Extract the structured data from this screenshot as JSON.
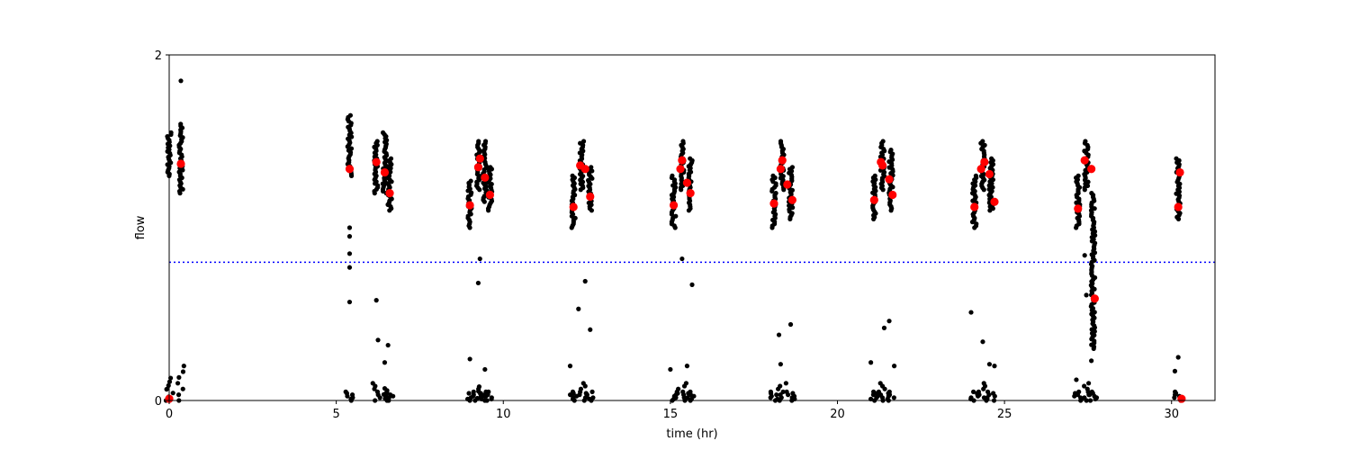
{
  "chart_data": {
    "type": "scatter",
    "title": "",
    "xlabel": "time (hr)",
    "ylabel": "flow",
    "xlim": [
      0,
      31.3
    ],
    "ylim": [
      0,
      2
    ],
    "xticks": [
      0,
      5,
      10,
      15,
      20,
      25,
      30
    ],
    "yticks": [
      0,
      2
    ],
    "grid": false,
    "threshold": {
      "y": 0.8,
      "color": "#0000ff",
      "style": "dotted"
    },
    "series": [
      {
        "color": "#000000",
        "marker": "small-dot",
        "clusters": [
          {
            "x": 0.0,
            "high": [
              1.3,
              1.55
            ],
            "low": [
              0.0,
              0.13
            ]
          },
          {
            "x": 0.35,
            "high": [
              1.2,
              1.6
            ],
            "low": [
              0.0,
              0.2
            ]
          },
          {
            "x": 5.4,
            "high": [
              1.3,
              1.65
            ],
            "low": [
              0.0,
              0.05
            ]
          },
          {
            "x": 6.2,
            "high": [
              1.2,
              1.5
            ],
            "low": [
              0.0,
              0.1
            ]
          },
          {
            "x": 6.45,
            "high": [
              1.2,
              1.55
            ],
            "low": [
              0.0,
              0.07
            ]
          },
          {
            "x": 6.6,
            "high": [
              1.1,
              1.4
            ],
            "low": [
              0.0,
              0.05
            ]
          },
          {
            "x": 9.0,
            "high": [
              1.0,
              1.27
            ],
            "low": [
              0.0,
              0.05
            ]
          },
          {
            "x": 9.25,
            "high": [
              1.22,
              1.5
            ],
            "low": [
              0.0,
              0.08
            ]
          },
          {
            "x": 9.45,
            "high": [
              1.15,
              1.5
            ],
            "low": [
              0.0,
              0.05
            ]
          },
          {
            "x": 9.6,
            "high": [
              1.1,
              1.35
            ],
            "low": [
              0.0,
              0.05
            ]
          },
          {
            "x": 12.1,
            "high": [
              1.0,
              1.3
            ],
            "low": [
              0.0,
              0.05
            ]
          },
          {
            "x": 12.35,
            "high": [
              1.22,
              1.5
            ],
            "low": [
              0.0,
              0.1
            ]
          },
          {
            "x": 12.6,
            "high": [
              1.1,
              1.35
            ],
            "low": [
              0.0,
              0.05
            ]
          },
          {
            "x": 15.1,
            "high": [
              1.0,
              1.3
            ],
            "low": [
              0.0,
              0.05
            ]
          },
          {
            "x": 15.35,
            "high": [
              1.22,
              1.5
            ],
            "low": [
              0.0,
              0.1
            ]
          },
          {
            "x": 15.6,
            "high": [
              1.1,
              1.4
            ],
            "low": [
              0.0,
              0.05
            ]
          },
          {
            "x": 18.1,
            "high": [
              1.0,
              1.3
            ],
            "low": [
              0.0,
              0.05
            ]
          },
          {
            "x": 18.35,
            "high": [
              1.22,
              1.5
            ],
            "low": [
              0.0,
              0.1
            ]
          },
          {
            "x": 18.6,
            "high": [
              1.05,
              1.35
            ],
            "low": [
              0.0,
              0.05
            ]
          },
          {
            "x": 21.1,
            "high": [
              1.05,
              1.3
            ],
            "low": [
              0.0,
              0.05
            ]
          },
          {
            "x": 21.35,
            "high": [
              1.22,
              1.5
            ],
            "low": [
              0.0,
              0.1
            ]
          },
          {
            "x": 21.6,
            "high": [
              1.1,
              1.45
            ],
            "low": [
              0.0,
              0.05
            ]
          },
          {
            "x": 24.1,
            "high": [
              1.0,
              1.3
            ],
            "low": [
              0.0,
              0.05
            ]
          },
          {
            "x": 24.35,
            "high": [
              1.22,
              1.5
            ],
            "low": [
              0.0,
              0.1
            ]
          },
          {
            "x": 24.6,
            "high": [
              1.1,
              1.4
            ],
            "low": [
              0.0,
              0.05
            ]
          },
          {
            "x": 27.2,
            "high": [
              1.0,
              1.3
            ],
            "low": [
              0.0,
              0.05
            ]
          },
          {
            "x": 27.45,
            "high": [
              1.22,
              1.5
            ],
            "low": [
              0.0,
              0.1
            ]
          },
          {
            "x": 27.65,
            "high": [
              0.3,
              1.2
            ],
            "low": [
              0.0,
              0.05
            ]
          },
          {
            "x": 30.2,
            "high": [
              1.05,
              1.4
            ],
            "low": [
              0.0,
              0.05
            ]
          }
        ],
        "sparse": [
          [
            0.35,
            1.85
          ],
          [
            5.4,
            1.0
          ],
          [
            5.4,
            0.95
          ],
          [
            5.4,
            0.85
          ],
          [
            5.4,
            0.77
          ],
          [
            5.4,
            0.57
          ],
          [
            6.2,
            0.58
          ],
          [
            6.25,
            0.35
          ],
          [
            6.45,
            0.22
          ],
          [
            6.55,
            0.32
          ],
          [
            9.0,
            0.24
          ],
          [
            9.25,
            0.68
          ],
          [
            9.3,
            0.82
          ],
          [
            9.45,
            0.18
          ],
          [
            12.0,
            0.2
          ],
          [
            12.25,
            0.53
          ],
          [
            12.45,
            0.69
          ],
          [
            12.6,
            0.41
          ],
          [
            15.0,
            0.18
          ],
          [
            15.35,
            0.82
          ],
          [
            15.5,
            0.2
          ],
          [
            15.65,
            0.67
          ],
          [
            18.25,
            0.38
          ],
          [
            18.3,
            0.21
          ],
          [
            18.6,
            0.44
          ],
          [
            21.0,
            0.22
          ],
          [
            21.4,
            0.42
          ],
          [
            21.55,
            0.46
          ],
          [
            21.7,
            0.2
          ],
          [
            24.0,
            0.51
          ],
          [
            24.35,
            0.34
          ],
          [
            24.55,
            0.21
          ],
          [
            24.7,
            0.2
          ],
          [
            27.15,
            0.12
          ],
          [
            27.4,
            0.84
          ],
          [
            27.45,
            0.61
          ],
          [
            27.6,
            0.23
          ],
          [
            30.1,
            0.17
          ],
          [
            30.2,
            0.25
          ]
        ]
      },
      {
        "color": "#ff0000",
        "marker": "large-dot",
        "points": [
          [
            0.0,
            0.01
          ],
          [
            0.35,
            1.37
          ],
          [
            5.4,
            1.34
          ],
          [
            6.2,
            1.38
          ],
          [
            6.45,
            1.32
          ],
          [
            6.6,
            1.2
          ],
          [
            9.0,
            1.13
          ],
          [
            9.25,
            1.35
          ],
          [
            9.3,
            1.4
          ],
          [
            9.45,
            1.29
          ],
          [
            9.6,
            1.19
          ],
          [
            12.1,
            1.12
          ],
          [
            12.3,
            1.36
          ],
          [
            12.45,
            1.34
          ],
          [
            12.6,
            1.18
          ],
          [
            15.1,
            1.13
          ],
          [
            15.3,
            1.34
          ],
          [
            15.35,
            1.39
          ],
          [
            15.5,
            1.26
          ],
          [
            15.6,
            1.2
          ],
          [
            18.1,
            1.14
          ],
          [
            18.3,
            1.34
          ],
          [
            18.35,
            1.39
          ],
          [
            18.5,
            1.25
          ],
          [
            18.65,
            1.16
          ],
          [
            21.1,
            1.16
          ],
          [
            21.3,
            1.38
          ],
          [
            21.35,
            1.36
          ],
          [
            21.55,
            1.28
          ],
          [
            21.65,
            1.19
          ],
          [
            24.1,
            1.12
          ],
          [
            24.3,
            1.34
          ],
          [
            24.4,
            1.38
          ],
          [
            24.55,
            1.31
          ],
          [
            24.7,
            1.15
          ],
          [
            27.2,
            1.11
          ],
          [
            27.4,
            1.39
          ],
          [
            27.6,
            1.34
          ],
          [
            27.7,
            0.59
          ],
          [
            30.2,
            1.12
          ],
          [
            30.25,
            1.32
          ],
          [
            30.3,
            0.01
          ]
        ]
      }
    ]
  }
}
